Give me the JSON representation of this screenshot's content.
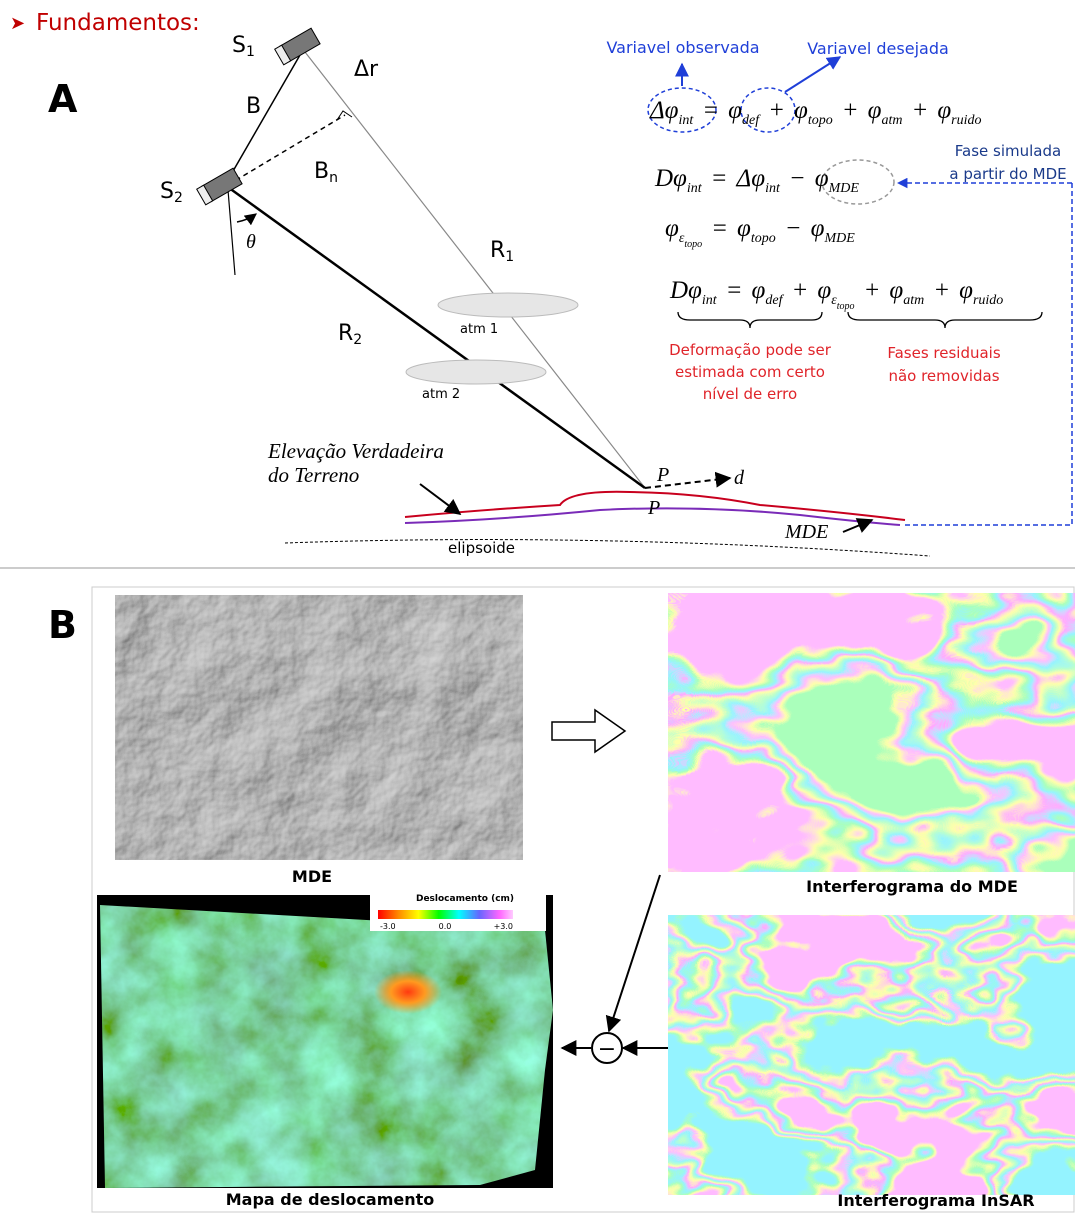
{
  "header": {
    "title": "Fundamentos:"
  },
  "panel_a": {
    "label": "A",
    "s1": {
      "m": "S",
      "s": "1"
    },
    "s2": {
      "m": "S",
      "s": "2"
    },
    "delta_r": "Δr",
    "baseline": "B",
    "bn": {
      "m": "B",
      "s": "n"
    },
    "theta": "θ",
    "r1": {
      "m": "R",
      "s": "1"
    },
    "r2": {
      "m": "R",
      "s": "2"
    },
    "atm1": "atm 1",
    "atm2": "atm 2",
    "observed": "Variavel observada",
    "desired": "Variavel desejada",
    "equations": [
      [
        {
          "m": "Δφ",
          "s": "int"
        },
        {
          "m": "="
        },
        {
          "m": "φ",
          "s": "def"
        },
        {
          "m": "+"
        },
        {
          "m": "φ",
          "s": "topo"
        },
        {
          "m": "+"
        },
        {
          "m": "φ",
          "s": "atm"
        },
        {
          "m": "+"
        },
        {
          "m": "φ",
          "s": "ruido"
        }
      ],
      [
        {
          "m": "Dφ",
          "s": "int"
        },
        {
          "m": "="
        },
        {
          "m": "Δφ",
          "s": "int"
        },
        {
          "m": "−"
        },
        {
          "m": "φ",
          "s": "MDE"
        }
      ],
      [
        {
          "m": "φ",
          "s": "ε",
          "ss": "topo"
        },
        {
          "m": "="
        },
        {
          "m": "φ",
          "s": "topo"
        },
        {
          "m": "−"
        },
        {
          "m": "φ",
          "s": "MDE"
        }
      ],
      [
        {
          "m": "Dφ",
          "s": "int"
        },
        {
          "m": "="
        },
        {
          "m": "φ",
          "s": "def"
        },
        {
          "m": "+"
        },
        {
          "m": "φ",
          "s": "ε",
          "ss": "topo"
        },
        {
          "m": "+"
        },
        {
          "m": "φ",
          "s": "atm"
        },
        {
          "m": "+"
        },
        {
          "m": "φ",
          "s": "ruido"
        }
      ]
    ],
    "simulated": [
      "Fase simulada",
      "a partir do MDE"
    ],
    "deformation": [
      "Deformação  pode ser",
      "estimada com certo",
      "nível de erro"
    ],
    "residual": [
      "Fases residuais",
      "não removidas"
    ],
    "elevation": [
      "Elevação  Verdadeira",
      "do Terreno"
    ],
    "p": "P",
    "d": "d",
    "p_prime": "P",
    "mde": "MDE",
    "ellipsoid": "elipsoide"
  },
  "panel_b": {
    "label": "B",
    "mde": "MDE",
    "interferogram_mde": "Interferograma do MDE",
    "interferogram_insar": "Interferograma InSAR",
    "displacement_title": "Deslocamento (cm)",
    "colorbar_labels": [
      "-3.0",
      "0.0",
      "+3.0"
    ],
    "displacement_map": "Mapa de deslocamento",
    "operator": "−"
  }
}
